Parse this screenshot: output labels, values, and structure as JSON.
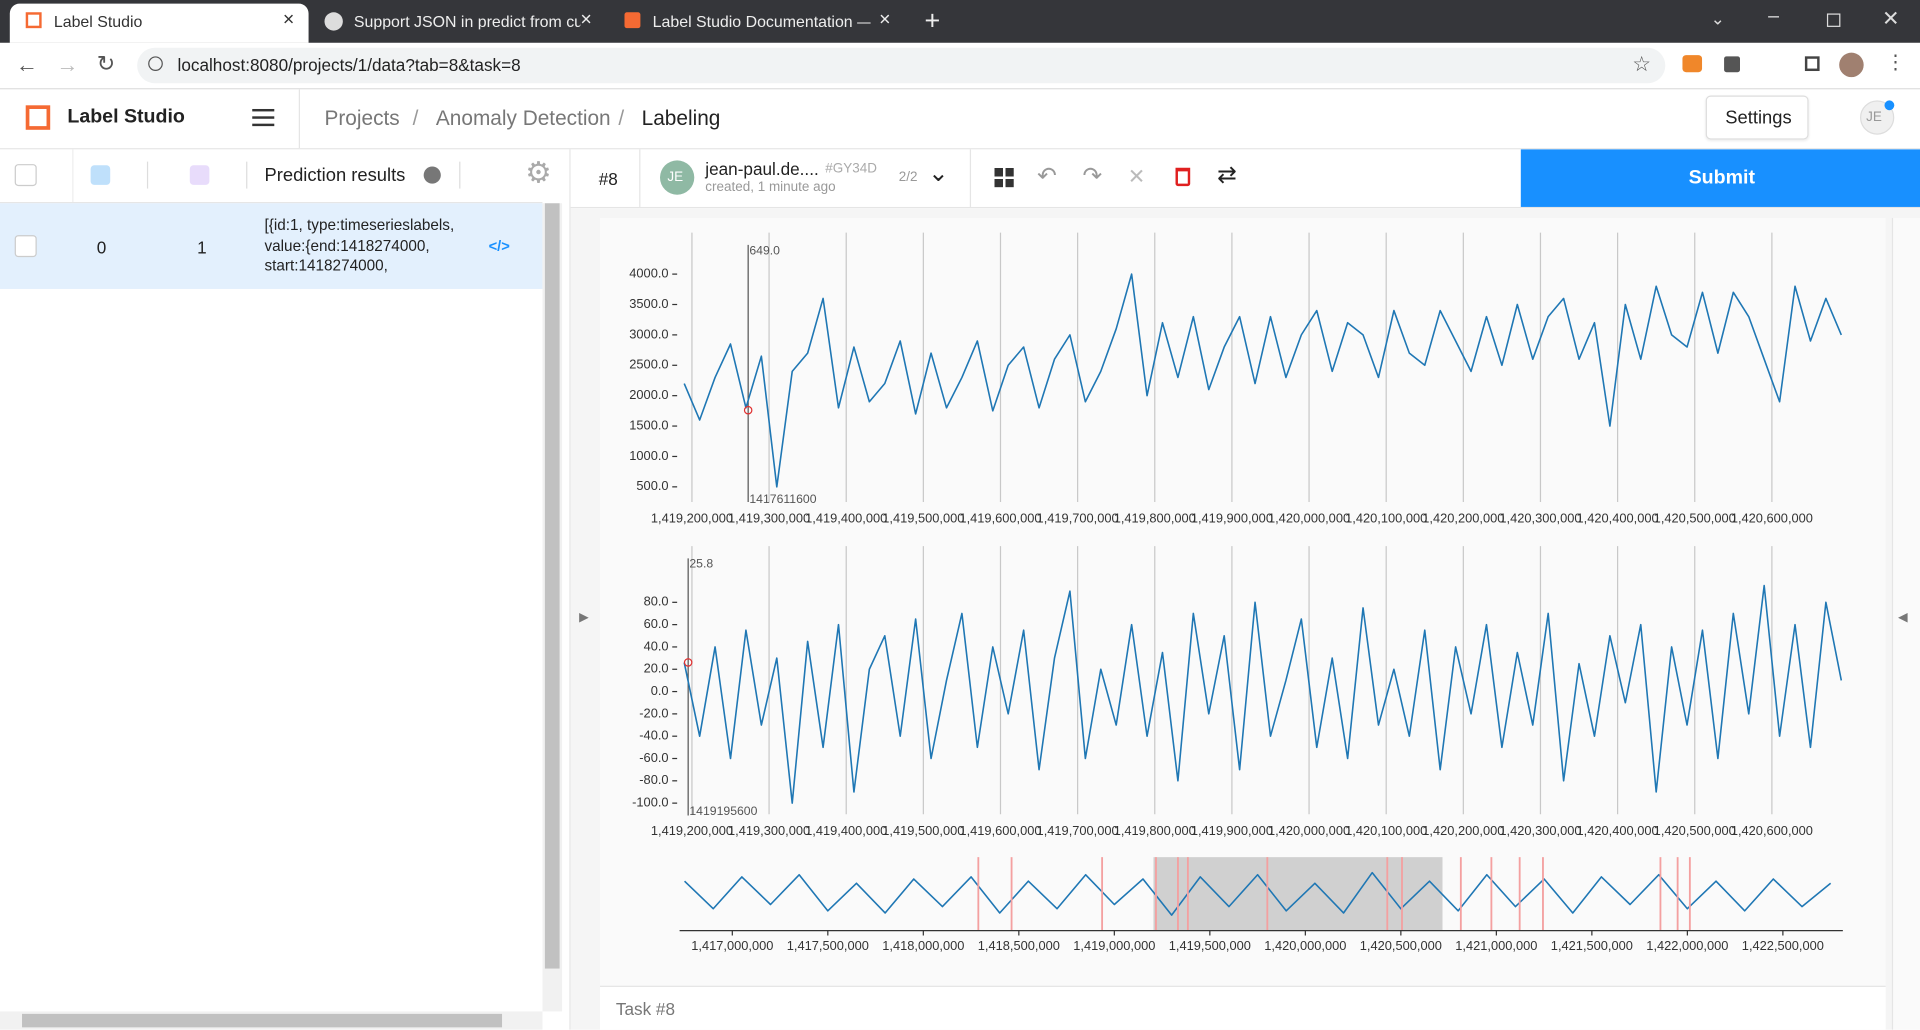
{
  "browser": {
    "tabs": [
      {
        "title": "Label Studio"
      },
      {
        "title": "Support JSON in predict from cu"
      },
      {
        "title": "Label Studio Documentation — l"
      }
    ],
    "url": "localhost:8080/projects/1/data?tab=8&task=8"
  },
  "app": {
    "name": "Label Studio",
    "breadcrumbs": [
      "Projects",
      "Anomaly Detection",
      "Labeling"
    ],
    "settings": "Settings",
    "avatar": "JE"
  },
  "table": {
    "header": "Prediction results",
    "rows": [
      [
        0,
        1,
        "[{id:1, type:timeserieslabels, value:{end:1418274000, start:1418274000,"
      ]
    ]
  },
  "annotation": {
    "task": "#8",
    "initials": "JE",
    "user": "jean-paul.de....",
    "user_id": "#GY34D",
    "created": "created, 1 minute ago",
    "count": "2/2",
    "submit": "Submit",
    "footer": "Task #8"
  },
  "timeseries": {
    "x": [
      1419190000,
      1419210000,
      1419230000,
      1419250000,
      1419270000,
      1419290000,
      1419310000,
      1419330000,
      1419350000,
      1419370000,
      1419390000,
      1419410000,
      1419430000,
      1419450000,
      1419470000,
      1419490000,
      1419510000,
      1419530000,
      1419550000,
      1419570000,
      1419590000,
      1419610000,
      1419630000,
      1419650000,
      1419670000,
      1419690000,
      1419710000,
      1419730000,
      1419750000,
      1419770000,
      1419790000,
      1419810000,
      1419830000,
      1419850000,
      1419870000,
      1419890000,
      1419910000,
      1419930000,
      1419950000,
      1419970000,
      1419990000,
      1420010000,
      1420030000,
      1420050000,
      1420070000,
      1420090000,
      1420110000,
      1420130000,
      1420150000,
      1420170000,
      1420190000,
      1420210000,
      1420230000,
      1420250000,
      1420270000,
      1420290000,
      1420310000,
      1420330000,
      1420350000,
      1420370000,
      1420390000,
      1420410000,
      1420430000,
      1420450000,
      1420470000,
      1420490000,
      1420510000,
      1420530000,
      1420550000,
      1420570000,
      1420590000,
      1420610000,
      1420630000,
      1420650000,
      1420670000,
      1420690000
    ],
    "xlim": [
      1419184000,
      1420692000
    ],
    "xticks": [
      {
        "value": 1419200000,
        "label": "1,419,200,000"
      },
      {
        "value": 1419300000,
        "label": "1,419,300,000"
      },
      {
        "value": 1419400000,
        "label": "1,419,400,000"
      },
      {
        "value": 1419500000,
        "label": "1,419,500,000"
      },
      {
        "value": 1419600000,
        "label": "1,419,600,000"
      },
      {
        "value": 1419700000,
        "label": "1,419,700,000"
      },
      {
        "value": 1419800000,
        "label": "1,419,800,000"
      },
      {
        "value": 1419900000,
        "label": "1,419,900,000"
      },
      {
        "value": 1420000000,
        "label": "1,420,000,000"
      },
      {
        "value": 1420100000,
        "label": "1,420,100,000"
      },
      {
        "value": 1420200000,
        "label": "1,420,200,000"
      },
      {
        "value": 1420300000,
        "label": "1,420,300,000"
      },
      {
        "value": 1420400000,
        "label": "1,420,400,000"
      },
      {
        "value": 1420500000,
        "label": "1,420,500,000"
      },
      {
        "value": 1420600000,
        "label": "1,420,600,000"
      }
    ],
    "charts": [
      {
        "type": "line",
        "color": "#1f77b4",
        "ylim": [
          250,
          4400
        ],
        "yticks": [
          {
            "value": 4000,
            "label": "4000.0"
          },
          {
            "value": 3500,
            "label": "3500.0"
          },
          {
            "value": 3000,
            "label": "3000.0"
          },
          {
            "value": 2500,
            "label": "2500.0"
          },
          {
            "value": 2000,
            "label": "2000.0"
          },
          {
            "value": 1500,
            "label": "1500.0"
          },
          {
            "value": 1000,
            "label": "1000.0"
          },
          {
            "value": 500,
            "label": "500.0"
          }
        ],
        "cursor": {
          "value": "649.0",
          "time": "1417611600"
        },
        "values": [
          2200,
          1600,
          2300,
          2850,
          1800,
          2650,
          500,
          2400,
          2700,
          3600,
          1800,
          2800,
          1900,
          2200,
          2900,
          1700,
          2700,
          1800,
          2300,
          2900,
          1750,
          2500,
          2800,
          1800,
          2600,
          3000,
          1900,
          2400,
          3100,
          4000,
          2000,
          3200,
          2300,
          3300,
          2100,
          2800,
          3300,
          2200,
          3300,
          2300,
          3000,
          3400,
          2400,
          3200,
          3000,
          2300,
          3400,
          2700,
          2500,
          3400,
          2900,
          2400,
          3300,
          2500,
          3500,
          2600,
          3300,
          3600,
          2600,
          3200,
          1500,
          3500,
          2600,
          3800,
          3000,
          2800,
          3700,
          2700,
          3700,
          3300,
          2600,
          1900,
          3800,
          2900,
          3600,
          3000
        ]
      },
      {
        "type": "line",
        "color": "#1f77b4",
        "ylim": [
          -110,
          115
        ],
        "yticks": [
          {
            "value": 80,
            "label": "80.0"
          },
          {
            "value": 60,
            "label": "60.0"
          },
          {
            "value": 40,
            "label": "40.0"
          },
          {
            "value": 20,
            "label": "20.0"
          },
          {
            "value": 0,
            "label": "0.0"
          },
          {
            "value": -20,
            "label": "-20.0"
          },
          {
            "value": -40,
            "label": "-40.0"
          },
          {
            "value": -60,
            "label": "-60.0"
          },
          {
            "value": -80,
            "label": "-80.0"
          },
          {
            "value": -100,
            "label": "-100.0"
          }
        ],
        "cursor": {
          "value": "25.8",
          "time": "1419195600"
        },
        "values": [
          26,
          -40,
          40,
          -60,
          55,
          -30,
          30,
          -100,
          45,
          -50,
          60,
          -90,
          20,
          50,
          -40,
          65,
          -60,
          10,
          70,
          -50,
          40,
          -20,
          55,
          -70,
          30,
          90,
          -60,
          20,
          -30,
          60,
          -40,
          35,
          -80,
          70,
          -20,
          50,
          -70,
          80,
          -40,
          10,
          65,
          -50,
          30,
          -60,
          75,
          -30,
          20,
          -40,
          55,
          -70,
          40,
          -20,
          60,
          -50,
          35,
          -30,
          70,
          -80,
          25,
          -40,
          50,
          -10,
          60,
          -90,
          40,
          -30,
          55,
          -60,
          70,
          -20,
          95,
          -40,
          60,
          -50,
          80,
          10
        ]
      }
    ]
  },
  "overview": {
    "type": "line",
    "color": "#1f77b4",
    "x": [
      1416750000,
      1416900000,
      1417050000,
      1417200000,
      1417350000,
      1417500000,
      1417650000,
      1417800000,
      1417950000,
      1418100000,
      1418250000,
      1418400000,
      1418550000,
      1418700000,
      1418850000,
      1419000000,
      1419150000,
      1419300000,
      1419450000,
      1419600000,
      1419750000,
      1419900000,
      1420050000,
      1420200000,
      1420350000,
      1420500000,
      1420650000,
      1420800000,
      1420950000,
      1421100000,
      1421250000,
      1421400000,
      1421550000,
      1421700000,
      1421850000,
      1422000000,
      1422150000,
      1422300000,
      1422450000,
      1422600000,
      1422750000
    ],
    "values": [
      0.6,
      -0.7,
      0.8,
      -0.5,
      0.9,
      -0.8,
      0.5,
      -0.9,
      0.7,
      -0.6,
      0.8,
      -0.9,
      0.6,
      -0.7,
      0.9,
      -0.5,
      0.7,
      -1.0,
      0.8,
      -0.6,
      0.9,
      -0.8,
      0.5,
      -0.9,
      1.0,
      -0.7,
      0.6,
      -0.8,
      0.9,
      -0.6,
      0.7,
      -0.9,
      0.8,
      -0.5,
      0.9,
      -0.7,
      0.6,
      -0.8,
      0.7,
      -0.6,
      0.5
    ],
    "ylim": [
      -1.5,
      1.5
    ],
    "xlim": [
      1416724000,
      1422814000
    ],
    "xticks": [
      {
        "value": 1417000000,
        "label": "1,417,000,000"
      },
      {
        "value": 1417500000,
        "label": "1,417,500,000"
      },
      {
        "value": 1418000000,
        "label": "1,418,000,000"
      },
      {
        "value": 1418500000,
        "label": "1,418,500,000"
      },
      {
        "value": 1419000000,
        "label": "1,419,000,000"
      },
      {
        "value": 1419500000,
        "label": "1,419,500,000"
      },
      {
        "value": 1420000000,
        "label": "1,420,000,000"
      },
      {
        "value": 1420500000,
        "label": "1,420,500,000"
      },
      {
        "value": 1421000000,
        "label": "1,421,000,000"
      },
      {
        "value": 1421500000,
        "label": "1,421,500,000"
      },
      {
        "value": 1422000000,
        "label": "1,422,000,000"
      },
      {
        "value": 1422500000,
        "label": "1,422,500,000"
      }
    ],
    "brush": [
      1419205000,
      1420718000
    ],
    "region_color": "#f4a0a0",
    "regions": [
      1418288000,
      1418462000,
      1418936000,
      1419218000,
      1419333000,
      1419385000,
      1419801000,
      1420429000,
      1420506000,
      1420814000,
      1420974000,
      1421122000,
      1421244000,
      1421859000,
      1421949000,
      1422013000
    ]
  }
}
